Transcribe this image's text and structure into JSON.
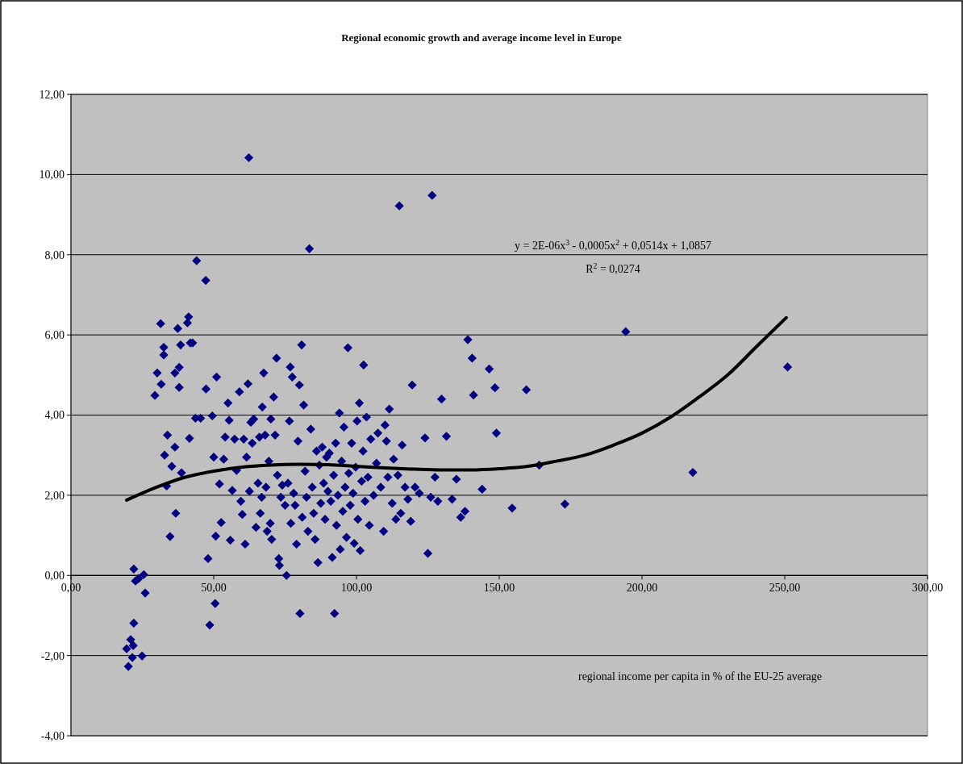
{
  "chart_data": {
    "type": "scatter",
    "title": "Regional economic growth and average income level in Europe",
    "xlabel": "regional income per capita in % of the EU-25 average",
    "annotations": [
      "y = 2E-06x$^{3}$ - 0,0005x$^{2}$ + 0,0514x + 1,0857",
      "R$^{2}$ = 0,0274"
    ],
    "xlim": [
      0,
      300
    ],
    "ylim": [
      -4,
      12
    ],
    "xticks": [
      {
        "value": 0,
        "label": "0,00"
      },
      {
        "value": 50,
        "label": "50,00"
      },
      {
        "value": 100,
        "label": "100,00"
      },
      {
        "value": 150,
        "label": "150,00"
      },
      {
        "value": 200,
        "label": "200,00"
      },
      {
        "value": 250,
        "label": "250,00"
      },
      {
        "value": 300,
        "label": "300,00"
      }
    ],
    "yticks": [
      {
        "value": -4,
        "label": "-4,00"
      },
      {
        "value": -2,
        "label": "-2,00"
      },
      {
        "value": 0,
        "label": "0,00"
      },
      {
        "value": 2,
        "label": "2,00"
      },
      {
        "value": 4,
        "label": "4,00"
      },
      {
        "value": 6,
        "label": "6,00"
      },
      {
        "value": 8,
        "label": "8,00"
      },
      {
        "value": 10,
        "label": "10,00"
      },
      {
        "value": 12,
        "label": "12,00"
      }
    ],
    "grid": "y",
    "marker": "diamond",
    "series": [
      {
        "color": "#000080",
        "x": [
          19.5,
          20.1,
          20.9,
          21.5,
          21.8,
          22.0,
          22.0,
          22.6,
          23.7,
          24.9,
          25.5,
          26.0,
          29.4,
          30.2,
          31.4,
          31.6,
          32.5,
          32.5,
          32.8,
          33.5,
          33.8,
          34.7,
          35.3,
          36.4,
          36.4,
          36.7,
          37.4,
          37.9,
          37.9,
          38.4,
          38.7,
          40.8,
          41.2,
          41.5,
          41.8,
          42.6,
          43.6,
          44.0,
          45.4,
          47.2,
          47.3,
          48.0,
          48.6,
          49.5,
          50.0,
          50.5,
          50.7,
          51.0,
          52.0,
          52.6,
          53.5,
          54.0,
          55.0,
          55.4,
          55.8,
          56.5,
          57.3,
          58.0,
          59.0,
          59.5,
          60.0,
          60.5,
          61.0,
          61.5,
          62.0,
          62.3,
          62.5,
          63.0,
          63.5,
          64.0,
          64.8,
          65.5,
          66.0,
          66.3,
          66.8,
          67.0,
          67.5,
          68.0,
          68.3,
          68.7,
          69.3,
          69.8,
          70.0,
          70.3,
          71.0,
          71.5,
          72.0,
          72.3,
          72.8,
          73.0,
          73.5,
          74.0,
          75.0,
          75.5,
          76.0,
          76.5,
          76.8,
          77.0,
          77.5,
          78.0,
          78.5,
          79.0,
          79.5,
          80.0,
          80.2,
          80.8,
          81.0,
          81.5,
          82.0,
          82.5,
          83.0,
          83.5,
          84.0,
          84.5,
          85.0,
          85.5,
          86.0,
          86.5,
          87.0,
          87.5,
          88.0,
          88.5,
          89.0,
          89.5,
          90.0,
          90.5,
          91.0,
          91.5,
          92.0,
          92.3,
          92.7,
          93.0,
          93.5,
          94.0,
          94.3,
          94.8,
          95.2,
          95.6,
          96.0,
          96.5,
          97.0,
          97.3,
          97.8,
          98.3,
          98.8,
          99.2,
          99.7,
          100.2,
          100.5,
          101.0,
          101.3,
          101.8,
          102.3,
          102.5,
          103.0,
          103.5,
          104.0,
          104.5,
          105.0,
          106.0,
          107.0,
          107.5,
          108.5,
          109.5,
          110.0,
          110.5,
          111.0,
          111.5,
          112.5,
          113.0,
          113.8,
          114.5,
          115.0,
          115.5,
          116.0,
          117.0,
          118.0,
          119.0,
          119.5,
          120.5,
          122.0,
          124.0,
          125.0,
          126.0,
          126.5,
          127.5,
          128.5,
          129.8,
          131.5,
          133.5,
          135.0,
          136.5,
          138.0,
          139.0,
          140.5,
          141.0,
          144.0,
          146.5,
          148.5,
          149.0,
          154.5,
          159.5,
          164.0,
          173.0,
          194.3,
          217.8,
          251.0
        ],
        "values": [
          -1.83,
          -2.27,
          -1.6,
          -2.05,
          -1.75,
          -1.19,
          0.16,
          -0.14,
          -0.08,
          -2.01,
          0.02,
          -0.44,
          4.49,
          5.05,
          6.28,
          4.77,
          5.5,
          5.69,
          3.0,
          2.23,
          3.5,
          0.97,
          2.72,
          5.05,
          3.2,
          1.55,
          6.16,
          5.19,
          4.69,
          5.75,
          2.56,
          6.3,
          6.45,
          3.42,
          5.8,
          5.8,
          3.92,
          7.85,
          3.92,
          7.36,
          4.65,
          0.42,
          -1.24,
          3.98,
          2.95,
          -0.7,
          0.98,
          4.95,
          2.28,
          1.32,
          2.9,
          3.45,
          4.3,
          3.87,
          0.88,
          2.12,
          3.4,
          2.62,
          4.58,
          1.85,
          1.52,
          3.4,
          0.78,
          2.95,
          4.78,
          10.42,
          2.1,
          3.82,
          3.3,
          3.9,
          1.2,
          2.3,
          3.45,
          1.55,
          1.95,
          4.2,
          5.05,
          3.5,
          2.2,
          1.1,
          2.85,
          1.3,
          3.9,
          0.9,
          4.45,
          3.5,
          5.42,
          2.5,
          0.42,
          0.25,
          1.95,
          2.25,
          1.75,
          0.0,
          2.3,
          3.85,
          5.2,
          1.3,
          4.95,
          2.05,
          1.75,
          0.78,
          3.35,
          4.75,
          -0.95,
          5.75,
          1.45,
          4.25,
          2.6,
          1.95,
          1.1,
          8.15,
          3.65,
          2.2,
          1.55,
          0.9,
          3.1,
          0.32,
          2.75,
          1.8,
          3.2,
          2.3,
          1.4,
          2.95,
          2.1,
          3.05,
          1.85,
          0.45,
          2.5,
          -0.95,
          3.3,
          1.25,
          2.0,
          4.05,
          0.65,
          2.85,
          1.6,
          3.7,
          2.2,
          0.95,
          5.68,
          2.55,
          1.75,
          3.3,
          2.05,
          0.8,
          2.7,
          3.85,
          1.4,
          4.3,
          0.62,
          2.35,
          3.1,
          5.25,
          1.85,
          3.95,
          2.45,
          1.25,
          3.4,
          2.0,
          2.8,
          3.55,
          2.2,
          1.1,
          3.75,
          3.35,
          2.45,
          4.15,
          1.8,
          2.9,
          1.4,
          2.5,
          9.22,
          1.55,
          3.25,
          2.2,
          1.9,
          1.35,
          4.75,
          2.2,
          2.05,
          3.43,
          0.55,
          1.95,
          9.48,
          2.45,
          1.85,
          4.4,
          3.47,
          1.9,
          2.4,
          1.45,
          1.6,
          5.88,
          5.42,
          4.5,
          2.15,
          5.15,
          4.68,
          3.55,
          1.68,
          4.63,
          2.75,
          1.78,
          6.08,
          2.57,
          5.2
        ]
      },
      {
        "type": "line",
        "color": "#000000",
        "marker": "none",
        "x": [
          19.5,
          30,
          40,
          50,
          60,
          70,
          80,
          90,
          100,
          110,
          120,
          130,
          140,
          150,
          160,
          170,
          180,
          190,
          200,
          210,
          220,
          230,
          240,
          250.5
        ],
        "values": [
          1.88,
          2.2,
          2.45,
          2.6,
          2.7,
          2.75,
          2.77,
          2.76,
          2.72,
          2.68,
          2.65,
          2.63,
          2.63,
          2.66,
          2.72,
          2.85,
          3.0,
          3.25,
          3.55,
          3.95,
          4.45,
          5.0,
          5.7,
          6.43
        ]
      }
    ]
  }
}
